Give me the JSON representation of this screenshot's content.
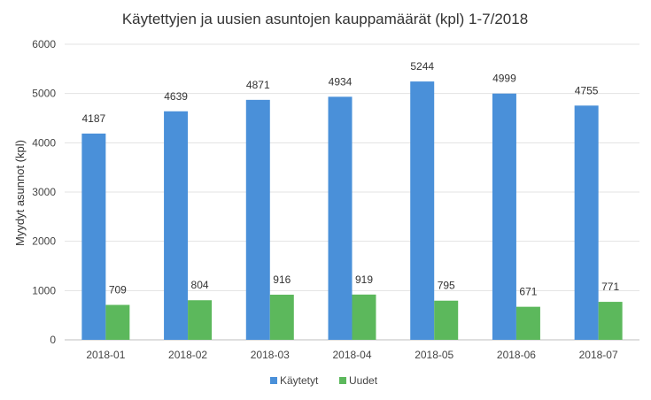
{
  "chart_data": {
    "type": "bar",
    "title": "Käytettyjen ja uusien asuntojen kauppamäärät (kpl) 1-7/2018",
    "xlabel": "",
    "ylabel": "Myydyt asunnot (kpl)",
    "ylim": [
      0,
      6000
    ],
    "yticks": [
      0,
      1000,
      2000,
      3000,
      4000,
      5000,
      6000
    ],
    "grid": true,
    "legend_position": "bottom",
    "categories": [
      "2018-01",
      "2018-02",
      "2018-03",
      "2018-04",
      "2018-05",
      "2018-06",
      "2018-07"
    ],
    "series": [
      {
        "name": "Käytetyt",
        "color": "#4a90d9",
        "values": [
          4187,
          4639,
          4871,
          4934,
          5244,
          4999,
          4755
        ]
      },
      {
        "name": "Uudet",
        "color": "#5cb85c",
        "values": [
          709,
          804,
          916,
          919,
          795,
          671,
          771
        ]
      }
    ]
  }
}
